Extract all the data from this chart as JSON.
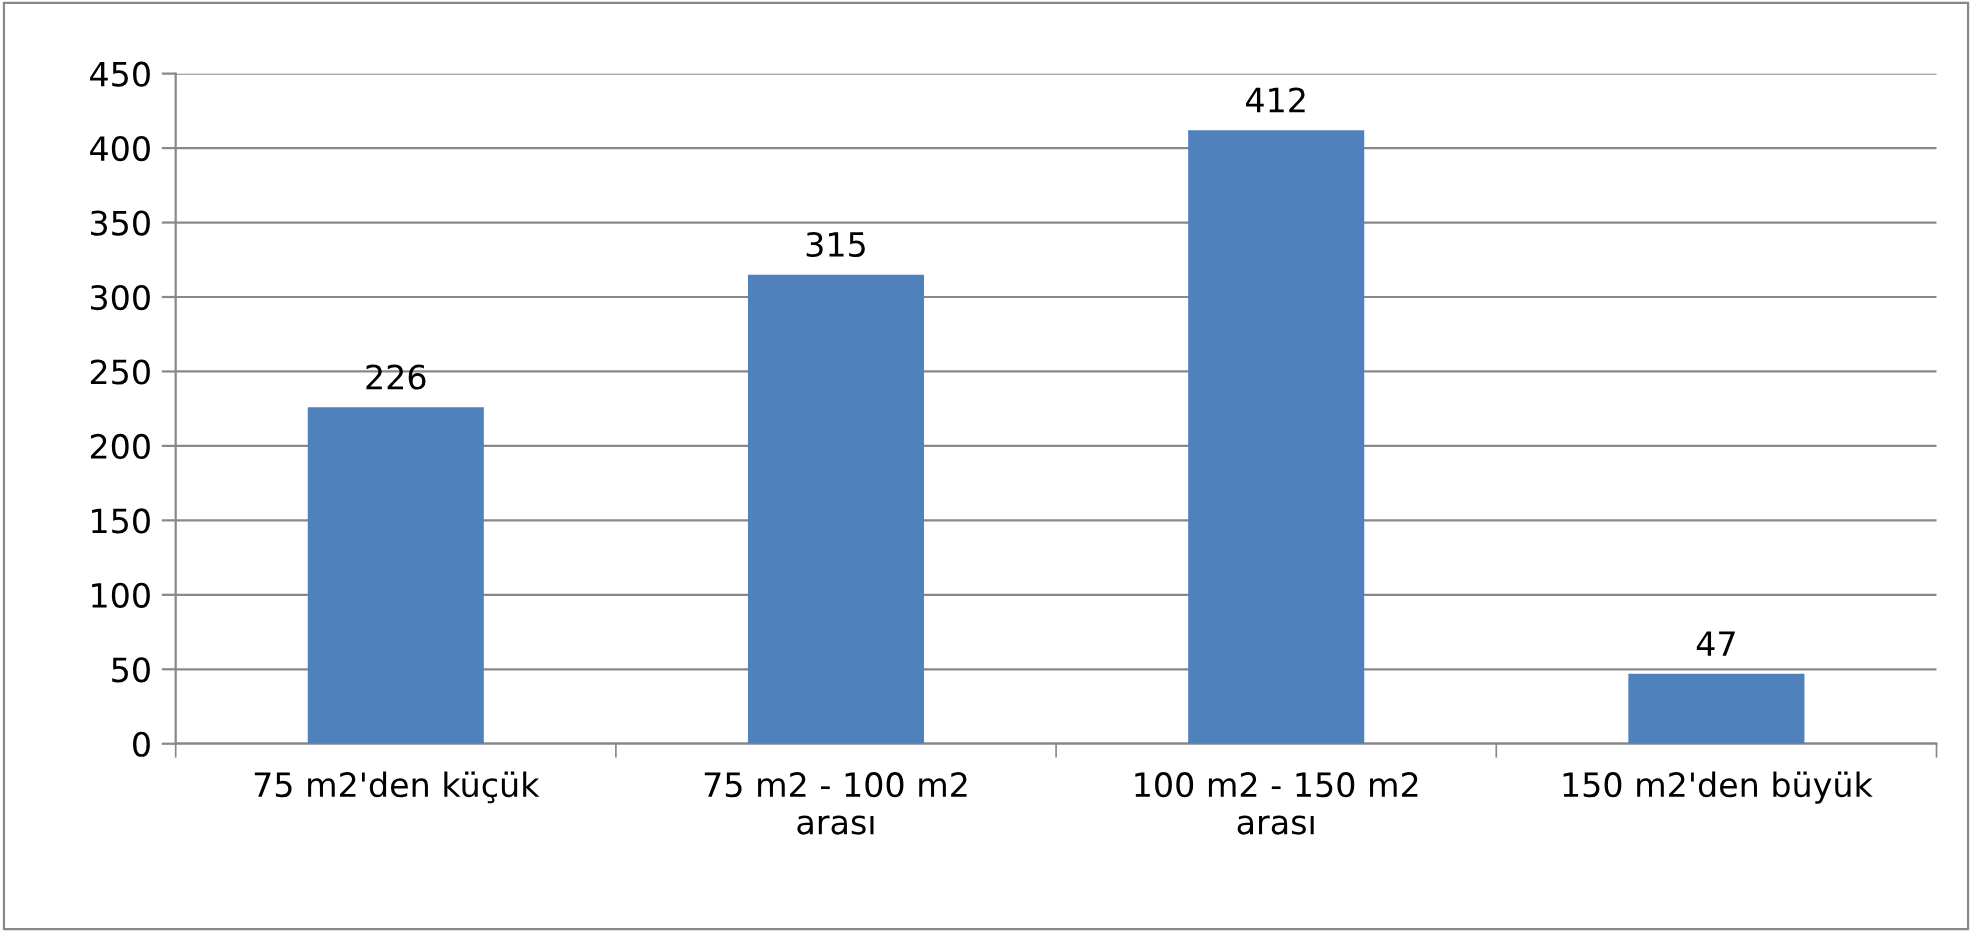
{
  "chart_data": {
    "type": "bar",
    "categories": [
      "75 m2'den küçük",
      "75 m2 - 100 m2\narası",
      "100 m2 - 150 m2\narası",
      "150 m2'den büyük"
    ],
    "values": [
      226,
      315,
      412,
      47
    ],
    "color": "#4f81bd",
    "ylim": [
      0,
      450
    ],
    "yticks": [
      0,
      50,
      100,
      150,
      200,
      250,
      300,
      350,
      400,
      450
    ],
    "grid": "y",
    "data_labels": true
  }
}
